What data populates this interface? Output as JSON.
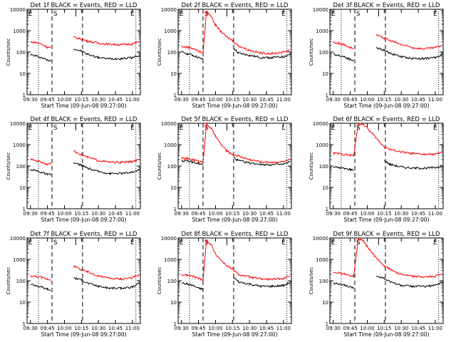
{
  "chart_data": [
    {
      "type": "line",
      "title": "Det 1f BLACK = Events, RED = LLD",
      "xlabel": "Start Time (09-Jun-08 09:27:00)",
      "ylabel": "Counts/sec",
      "x_ticks": [
        "09:30",
        "09:45",
        "10:00",
        "10:15",
        "10:30",
        "10:45",
        "11:00"
      ],
      "y_ticks": [
        "1",
        "10",
        "100",
        "1000",
        "10000"
      ],
      "ylim": [
        1,
        10000
      ],
      "y_scale": "log",
      "markers": [
        "E",
        "S",
        "E"
      ],
      "series": [
        {
          "color": "#000000",
          "x": [
            "09:30",
            "09:35",
            "09:40",
            "09:45",
            "09:48",
            "09:49",
            "10:06",
            "10:08",
            "10:15",
            "10:20",
            "10:30",
            "10:40",
            "10:50",
            "11:00",
            "11:06"
          ],
          "values": [
            75,
            65,
            55,
            42,
            40,
            null,
            null,
            140,
            110,
            80,
            55,
            48,
            50,
            55,
            70
          ]
        },
        {
          "color": "#ff0000",
          "x": [
            "09:30",
            "09:35",
            "09:40",
            "09:45",
            "09:48",
            "09:49",
            "10:06",
            "10:08",
            "10:15",
            "10:20",
            "10:30",
            "10:40",
            "10:50",
            "11:00",
            "11:06"
          ],
          "values": [
            300,
            280,
            230,
            170,
            160,
            null,
            null,
            500,
            400,
            330,
            260,
            230,
            220,
            240,
            300
          ]
        }
      ]
    },
    {
      "type": "line",
      "title": "Det 2f BLACK = Events, RED = LLD",
      "xlabel": "Start Time (09-Jun-08 09:27:00)",
      "ylabel": "Counts/sec",
      "x_ticks": [
        "09:30",
        "09:45",
        "10:00",
        "10:15",
        "10:30",
        "10:45",
        "11:00"
      ],
      "y_ticks": [
        "1",
        "10",
        "100",
        "1000",
        "10000"
      ],
      "ylim": [
        1,
        10000
      ],
      "y_scale": "log",
      "markers": [
        "E",
        "S",
        "E"
      ],
      "series": [
        {
          "color": "#000000",
          "x": [
            "09:30",
            "09:35",
            "09:40",
            "09:45",
            "09:49",
            "09:50",
            "10:05",
            "10:10",
            "10:16",
            "10:20",
            "10:30",
            "10:40",
            "10:50",
            "11:00",
            "11:06"
          ],
          "values": [
            100,
            85,
            70,
            55,
            45,
            null,
            null,
            null,
            150,
            90,
            70,
            55,
            55,
            60,
            80
          ]
        },
        {
          "color": "#ff0000",
          "x": [
            "09:30",
            "09:35",
            "09:40",
            "09:45",
            "09:49",
            "09:52",
            "09:56",
            "10:00",
            "10:05",
            "10:10",
            "10:15",
            "10:20",
            "10:30",
            "10:40",
            "10:50",
            "11:00",
            "11:06"
          ],
          "values": [
            180,
            170,
            150,
            110,
            90,
            8000,
            5000,
            1800,
            900,
            500,
            350,
            200,
            120,
            90,
            85,
            100,
            130
          ]
        }
      ]
    },
    {
      "type": "line",
      "title": "Det 3f BLACK = Events, RED = LLD",
      "xlabel": "Start Time (09-Jun-08 09:27:00)",
      "ylabel": "Counts/sec",
      "x_ticks": [
        "09:30",
        "09:45",
        "10:00",
        "10:15",
        "10:30",
        "10:45",
        "11:00"
      ],
      "y_ticks": [
        "1",
        "10",
        "100",
        "1000",
        "10000"
      ],
      "ylim": [
        1,
        10000
      ],
      "y_scale": "log",
      "markers": [
        "E",
        "S",
        "E"
      ],
      "series": [
        {
          "color": "#000000",
          "x": [
            "09:30",
            "09:35",
            "09:40",
            "09:45",
            "09:48",
            "09:49",
            "10:06",
            "10:08",
            "10:15",
            "10:20",
            "10:30",
            "10:40",
            "10:50",
            "11:00",
            "11:06"
          ],
          "values": [
            80,
            70,
            60,
            45,
            40,
            null,
            null,
            160,
            120,
            90,
            60,
            50,
            50,
            55,
            75
          ]
        },
        {
          "color": "#ff0000",
          "x": [
            "09:30",
            "09:35",
            "09:40",
            "09:45",
            "09:48",
            "09:49",
            "10:06",
            "10:08",
            "10:15",
            "10:20",
            "10:30",
            "10:40",
            "10:50",
            "11:00",
            "11:06"
          ],
          "values": [
            280,
            260,
            220,
            160,
            150,
            null,
            null,
            600,
            450,
            350,
            220,
            160,
            140,
            160,
            210
          ]
        }
      ]
    },
    {
      "type": "line",
      "title": "Det 4f BLACK = Events, RED = LLD",
      "xlabel": "Start Time (09-Jun-08 09:27:00)",
      "ylabel": "Counts/sec",
      "x_ticks": [
        "09:30",
        "09:45",
        "10:00",
        "10:15",
        "10:30",
        "10:45",
        "11:00"
      ],
      "y_ticks": [
        "1",
        "10",
        "100",
        "1000",
        "10000"
      ],
      "ylim": [
        1,
        10000
      ],
      "y_scale": "log",
      "markers": [
        "E",
        "S",
        "E"
      ],
      "series": [
        {
          "color": "#000000",
          "x": [
            "09:30",
            "09:35",
            "09:40",
            "09:45",
            "09:48",
            "09:49",
            "10:06",
            "10:08",
            "10:15",
            "10:20",
            "10:30",
            "10:40",
            "10:50",
            "11:00",
            "11:06"
          ],
          "values": [
            70,
            60,
            50,
            40,
            38,
            null,
            null,
            140,
            110,
            80,
            55,
            45,
            45,
            50,
            70
          ]
        },
        {
          "color": "#ff0000",
          "x": [
            "09:30",
            "09:35",
            "09:40",
            "09:45",
            "09:48",
            "09:49",
            "10:06",
            "10:08",
            "10:15",
            "10:20",
            "10:30",
            "10:40",
            "10:50",
            "11:00",
            "11:06"
          ],
          "values": [
            200,
            180,
            150,
            120,
            130,
            null,
            null,
            500,
            350,
            260,
            180,
            150,
            150,
            160,
            200
          ]
        }
      ]
    },
    {
      "type": "line",
      "title": "Det 5f BLACK = Events, RED = LLD",
      "xlabel": "Start Time (09-Jun-08 09:27:00)",
      "ylabel": "Counts/sec",
      "x_ticks": [
        "09:30",
        "09:45",
        "10:00",
        "10:15",
        "10:30",
        "10:45",
        "11:00"
      ],
      "y_ticks": [
        "1",
        "10",
        "100",
        "1000",
        "10000"
      ],
      "ylim": [
        1,
        10000
      ],
      "y_scale": "log",
      "markers": [
        "E",
        "S",
        "L"
      ],
      "series": [
        {
          "color": "#000000",
          "x": [
            "09:30",
            "09:35",
            "09:40",
            "09:45",
            "09:49",
            "09:50",
            "10:05",
            "10:10",
            "10:16",
            "10:20",
            "10:30",
            "10:40",
            "10:50",
            "11:00",
            "11:06"
          ],
          "values": [
            180,
            170,
            150,
            130,
            110,
            null,
            null,
            null,
            250,
            180,
            140,
            120,
            115,
            120,
            160
          ]
        },
        {
          "color": "#ff0000",
          "x": [
            "09:30",
            "09:35",
            "09:40",
            "09:45",
            "09:49",
            "09:52",
            "09:56",
            "10:00",
            "10:05",
            "10:10",
            "10:15",
            "10:20",
            "10:30",
            "10:40",
            "10:50",
            "11:00",
            "11:06"
          ],
          "values": [
            230,
            220,
            200,
            170,
            150,
            9000,
            6000,
            2500,
            1000,
            500,
            350,
            300,
            200,
            160,
            150,
            160,
            200
          ]
        }
      ]
    },
    {
      "type": "line",
      "title": "Det 6f BLACK = Events, RED = LLD",
      "xlabel": "Start Time (09-Jun-08 09:27:00)",
      "ylabel": "Counts/sec",
      "x_ticks": [
        "09:30",
        "09:45",
        "10:00",
        "10:15",
        "10:30",
        "10:45",
        "11:00"
      ],
      "y_ticks": [
        "1",
        "10",
        "100",
        "1000",
        "10000"
      ],
      "ylim": [
        1,
        10000
      ],
      "y_scale": "log",
      "markers": [
        "E",
        "S",
        "E"
      ],
      "series": [
        {
          "color": "#000000",
          "x": [
            "09:30",
            "09:35",
            "09:40",
            "09:45",
            "09:48",
            "09:49",
            "10:12",
            "10:15",
            "10:20",
            "10:30",
            "10:40",
            "10:50",
            "11:00",
            "11:06"
          ],
          "values": [
            90,
            85,
            75,
            70,
            65,
            null,
            null,
            180,
            120,
            90,
            80,
            80,
            85,
            100
          ]
        },
        {
          "color": "#ff0000",
          "x": [
            "09:30",
            "09:35",
            "09:40",
            "09:45",
            "09:48",
            "09:52",
            "09:56",
            "10:00",
            "10:05",
            "10:10",
            "10:15",
            "10:20",
            "10:30",
            "10:40",
            "10:50",
            "11:00",
            "11:06"
          ],
          "values": [
            400,
            380,
            350,
            320,
            300,
            9000,
            9500,
            6000,
            3000,
            1500,
            800,
            600,
            450,
            380,
            350,
            360,
            420
          ]
        }
      ]
    },
    {
      "type": "line",
      "title": "Det 7f BLACK = Events, RED = LLD",
      "xlabel": "Start Time (09-Jun-08 09:27:00)",
      "ylabel": "Counts/sec",
      "x_ticks": [
        "09:30",
        "09:45",
        "10:00",
        "10:15",
        "10:30",
        "10:45",
        "11:00"
      ],
      "y_ticks": [
        "1",
        "10",
        "100",
        "1000",
        "10000"
      ],
      "ylim": [
        1,
        10000
      ],
      "y_scale": "log",
      "markers": [
        "E",
        "S",
        "E"
      ],
      "series": [
        {
          "color": "#000000",
          "x": [
            "09:30",
            "09:35",
            "09:40",
            "09:45",
            "09:48",
            "09:49",
            "10:06",
            "10:08",
            "10:15",
            "10:20",
            "10:30",
            "10:40",
            "10:50",
            "11:00",
            "11:06"
          ],
          "values": [
            70,
            60,
            50,
            40,
            35,
            null,
            null,
            140,
            110,
            80,
            55,
            45,
            45,
            50,
            75
          ]
        },
        {
          "color": "#ff0000",
          "x": [
            "09:30",
            "09:35",
            "09:40",
            "09:45",
            "09:48",
            "09:49",
            "10:06",
            "10:08",
            "10:15",
            "10:20",
            "10:30",
            "10:40",
            "10:50",
            "11:00",
            "11:06"
          ],
          "values": [
            170,
            160,
            140,
            120,
            110,
            null,
            null,
            500,
            320,
            260,
            170,
            130,
            120,
            140,
            190
          ]
        }
      ]
    },
    {
      "type": "line",
      "title": "Det 8f BLACK = Events, RED = LLD",
      "xlabel": "Start Time (09-Jun-08 09:27:00)",
      "ylabel": "Counts/sec",
      "x_ticks": [
        "09:30",
        "09:45",
        "10:00",
        "10:15",
        "10:30",
        "10:45",
        "11:00"
      ],
      "y_ticks": [
        "1",
        "10",
        "100",
        "1000",
        "10000"
      ],
      "ylim": [
        1,
        10000
      ],
      "y_scale": "log",
      "markers": [
        "E",
        "S",
        "E"
      ],
      "series": [
        {
          "color": "#000000",
          "x": [
            "09:30",
            "09:35",
            "09:40",
            "09:45",
            "09:49",
            "09:50",
            "10:05",
            "10:10",
            "10:16",
            "10:20",
            "10:30",
            "10:40",
            "10:50",
            "11:00",
            "11:06"
          ],
          "values": [
            80,
            70,
            60,
            45,
            40,
            null,
            null,
            null,
            150,
            90,
            70,
            55,
            55,
            60,
            85
          ]
        },
        {
          "color": "#ff0000",
          "x": [
            "09:30",
            "09:35",
            "09:40",
            "09:45",
            "09:49",
            "09:52",
            "09:56",
            "10:00",
            "10:05",
            "10:10",
            "10:15",
            "10:20",
            "10:30",
            "10:40",
            "10:50",
            "11:00",
            "11:06"
          ],
          "values": [
            190,
            180,
            160,
            130,
            110,
            8000,
            5000,
            1800,
            900,
            500,
            350,
            200,
            150,
            120,
            115,
            130,
            170
          ]
        }
      ]
    },
    {
      "type": "line",
      "title": "Det 9f BLACK = Events, RED = LLD",
      "xlabel": "Start Time (09-Jun-08 09:27:00)",
      "ylabel": "Counts/sec",
      "x_ticks": [
        "09:30",
        "09:45",
        "10:00",
        "10:15",
        "10:30",
        "10:45",
        "11:00"
      ],
      "y_ticks": [
        "1",
        "10",
        "100",
        "1000",
        "10000"
      ],
      "ylim": [
        1,
        10000
      ],
      "y_scale": "log",
      "markers": [
        "E",
        "S",
        "E"
      ],
      "series": [
        {
          "color": "#000000",
          "x": [
            "09:30",
            "09:35",
            "09:40",
            "09:45",
            "09:48",
            "09:49",
            "10:06",
            "10:08",
            "10:15",
            "10:20",
            "10:30",
            "10:40",
            "10:50",
            "11:00",
            "11:06"
          ],
          "values": [
            80,
            70,
            60,
            50,
            45,
            null,
            null,
            170,
            130,
            90,
            60,
            55,
            55,
            60,
            85
          ]
        },
        {
          "color": "#ff0000",
          "x": [
            "09:30",
            "09:35",
            "09:40",
            "09:45",
            "09:48",
            "09:52",
            "09:56",
            "10:00",
            "10:05",
            "10:10",
            "10:15",
            "10:20",
            "10:30",
            "10:40",
            "10:50",
            "11:00",
            "11:06"
          ],
          "values": [
            250,
            240,
            210,
            170,
            160,
            9000,
            8000,
            4000,
            1800,
            900,
            500,
            350,
            200,
            160,
            150,
            160,
            220
          ]
        }
      ]
    }
  ]
}
